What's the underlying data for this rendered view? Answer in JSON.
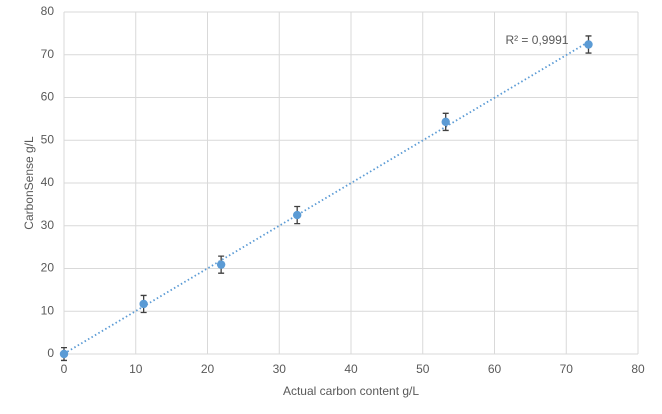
{
  "chart_data": {
    "type": "scatter",
    "x_label": "Actual carbon content g/L",
    "y_label": "CarbonSense g/L",
    "annotation": "R² = 0,9991",
    "x": [
      0,
      11.1,
      21.9,
      32.5,
      53.2,
      73.1
    ],
    "values": [
      0,
      11.7,
      20.9,
      32.5,
      54.3,
      72.4
    ],
    "errors": [
      1.5,
      2,
      2,
      2,
      2,
      2
    ],
    "color": "#5b9bd5",
    "error_color": "#404040",
    "trendline": true,
    "grid": true,
    "xlim": [
      0,
      80
    ],
    "xticks": [
      0,
      10,
      20,
      30,
      40,
      50,
      60,
      70,
      80
    ],
    "ylim": [
      0,
      80
    ],
    "yticks": [
      0,
      10,
      20,
      30,
      40,
      50,
      60,
      70,
      80
    ]
  }
}
